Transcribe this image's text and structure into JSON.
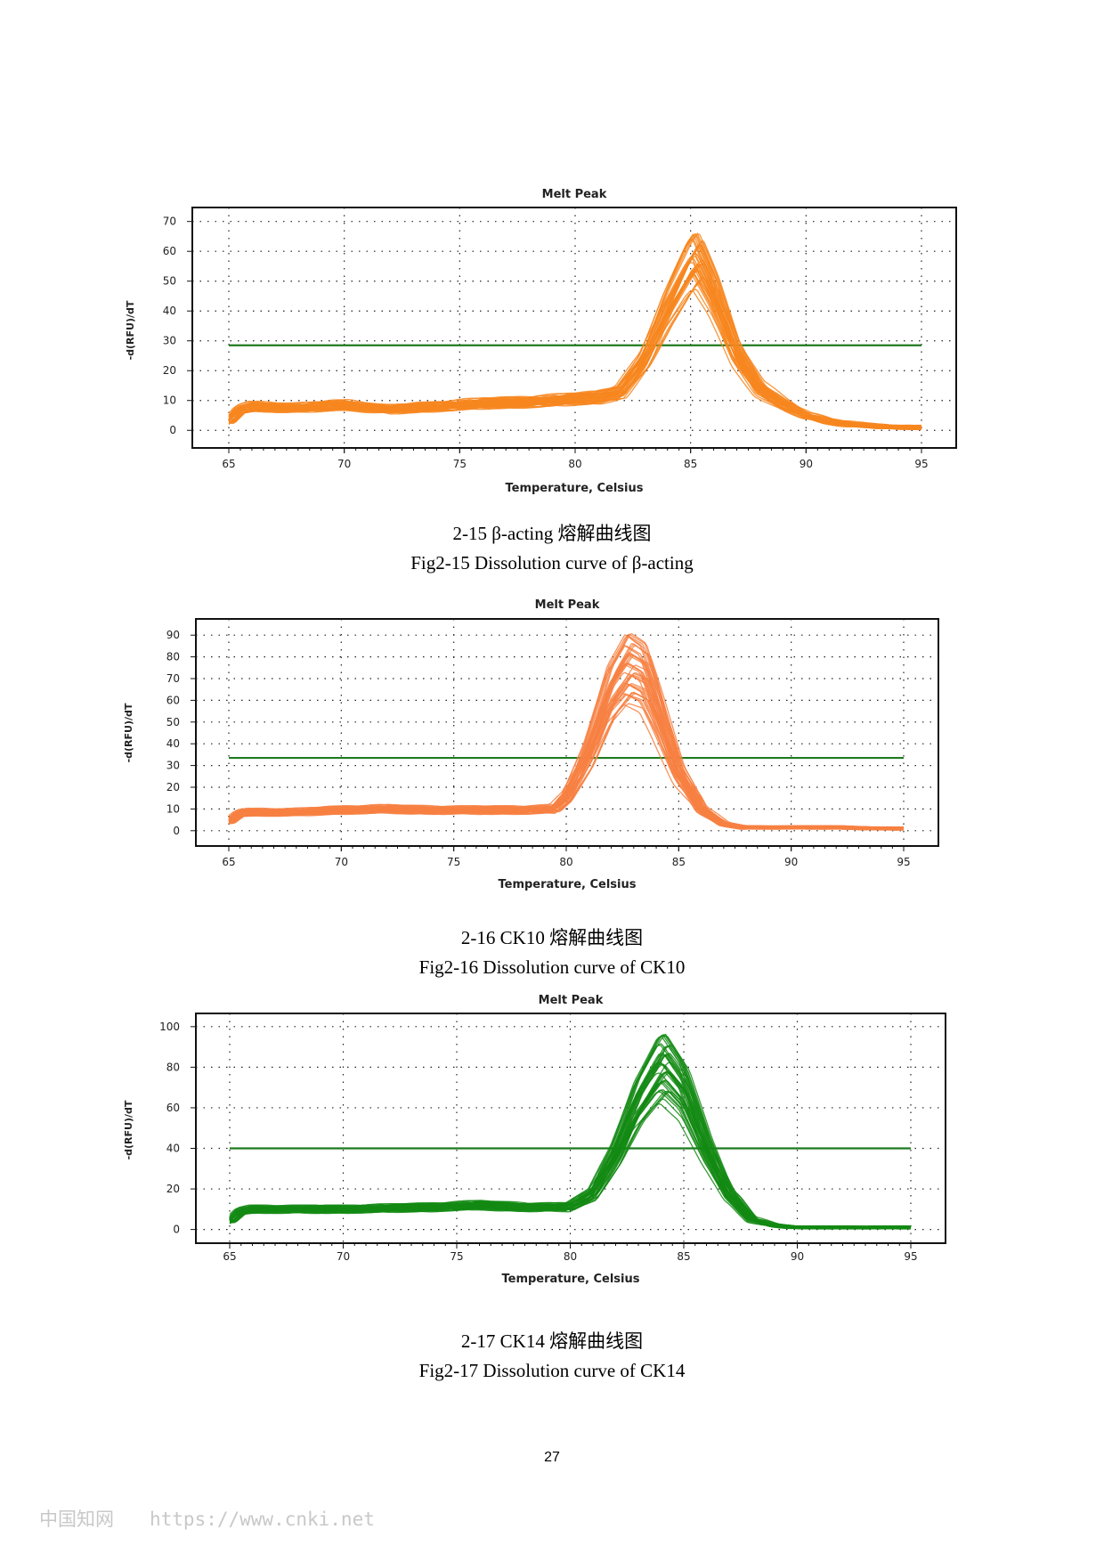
{
  "charts": [
    {
      "caption_cn": "2-15 β-acting 熔解曲线图",
      "caption_en": "Fig2-15    Dissolution curve of β-acting"
    },
    {
      "caption_cn": "2-16    CK10 熔解曲线图",
      "caption_en": "Fig2-16    Dissolution curve of CK10"
    },
    {
      "caption_cn": "2-17 CK14 熔解曲线图",
      "caption_en": "Fig2-17 Dissolution curve of CK14"
    }
  ],
  "page_number": "27",
  "watermark": {
    "cn": "中国知网",
    "url": "https://www.cnki.net"
  },
  "chart_data": [
    {
      "type": "line",
      "title": "Melt Peak",
      "xlabel": "Temperature, Celsius",
      "ylabel": "-d(RFU)/dT",
      "xlim": [
        65,
        95
      ],
      "ylim": [
        -5,
        72
      ],
      "xticks": [
        65,
        70,
        75,
        80,
        85,
        90,
        95
      ],
      "yticks": [
        0,
        10,
        20,
        30,
        40,
        50,
        60,
        70
      ],
      "grid": true,
      "color": "#f7861e",
      "threshold": 28.5,
      "threshold_color": "#1f7a1f",
      "series_count": 40,
      "x": [
        65,
        65.5,
        66,
        68,
        70,
        72,
        74,
        76,
        78,
        80,
        81,
        82,
        83,
        84,
        85,
        85.3,
        86,
        87,
        88,
        89,
        90,
        91,
        92,
        93,
        94,
        95
      ],
      "peak_min": 45,
      "peak_max": 67,
      "profile": [
        3,
        7,
        8,
        7.5,
        8.5,
        7,
        8,
        9,
        9.5,
        10.5,
        11,
        13,
        25,
        45,
        62,
        65,
        52,
        28,
        14,
        9,
        5,
        3,
        2,
        1.5,
        1,
        1
      ]
    },
    {
      "type": "line",
      "title": "Melt Peak",
      "xlabel": "Temperature, Celsius",
      "ylabel": "-d(RFU)/dT",
      "xlim": [
        65,
        95
      ],
      "ylim": [
        -5,
        95
      ],
      "xticks": [
        65,
        70,
        75,
        80,
        85,
        90,
        95
      ],
      "yticks": [
        0,
        10,
        20,
        30,
        40,
        50,
        60,
        70,
        80,
        90
      ],
      "grid": true,
      "color": "#f78042",
      "threshold": 33.5,
      "threshold_color": "#1f7a1f",
      "series_count": 40,
      "x": [
        65,
        65.5,
        66,
        68,
        70,
        72,
        74,
        76,
        78,
        79.5,
        80,
        81,
        82,
        82.8,
        83.5,
        84,
        85,
        86,
        87,
        88,
        90,
        92,
        94,
        95
      ],
      "peak_min": 54,
      "peak_max": 92,
      "profile": [
        4,
        8,
        8.5,
        8.5,
        9.5,
        10,
        9.5,
        9.5,
        9.5,
        10,
        15,
        40,
        75,
        90,
        85,
        68,
        30,
        10,
        3,
        1.5,
        1.5,
        1.5,
        1,
        1
      ]
    },
    {
      "type": "line",
      "title": "Melt Peak",
      "xlabel": "Temperature, Celsius",
      "ylabel": "-d(RFU)/dT",
      "xlim": [
        65,
        95
      ],
      "ylim": [
        -5,
        103
      ],
      "xticks": [
        65,
        70,
        75,
        80,
        85,
        90,
        95
      ],
      "yticks": [
        0,
        20,
        40,
        60,
        80,
        100
      ],
      "grid": true,
      "color": "#138a13",
      "threshold": 40,
      "threshold_color": "#1f7a1f",
      "series_count": 40,
      "x": [
        65,
        65.5,
        66,
        68,
        70,
        72,
        74,
        76,
        78,
        80,
        81,
        82,
        83,
        84,
        84.2,
        85,
        86,
        87,
        88,
        89,
        90,
        92,
        94,
        95
      ],
      "peak_min": 60,
      "peak_max": 98,
      "profile": [
        4,
        9,
        10,
        10,
        10,
        10.5,
        11,
        12,
        11,
        11,
        18,
        40,
        70,
        90,
        91,
        78,
        45,
        18,
        5,
        2,
        1,
        1,
        1,
        1
      ]
    }
  ]
}
